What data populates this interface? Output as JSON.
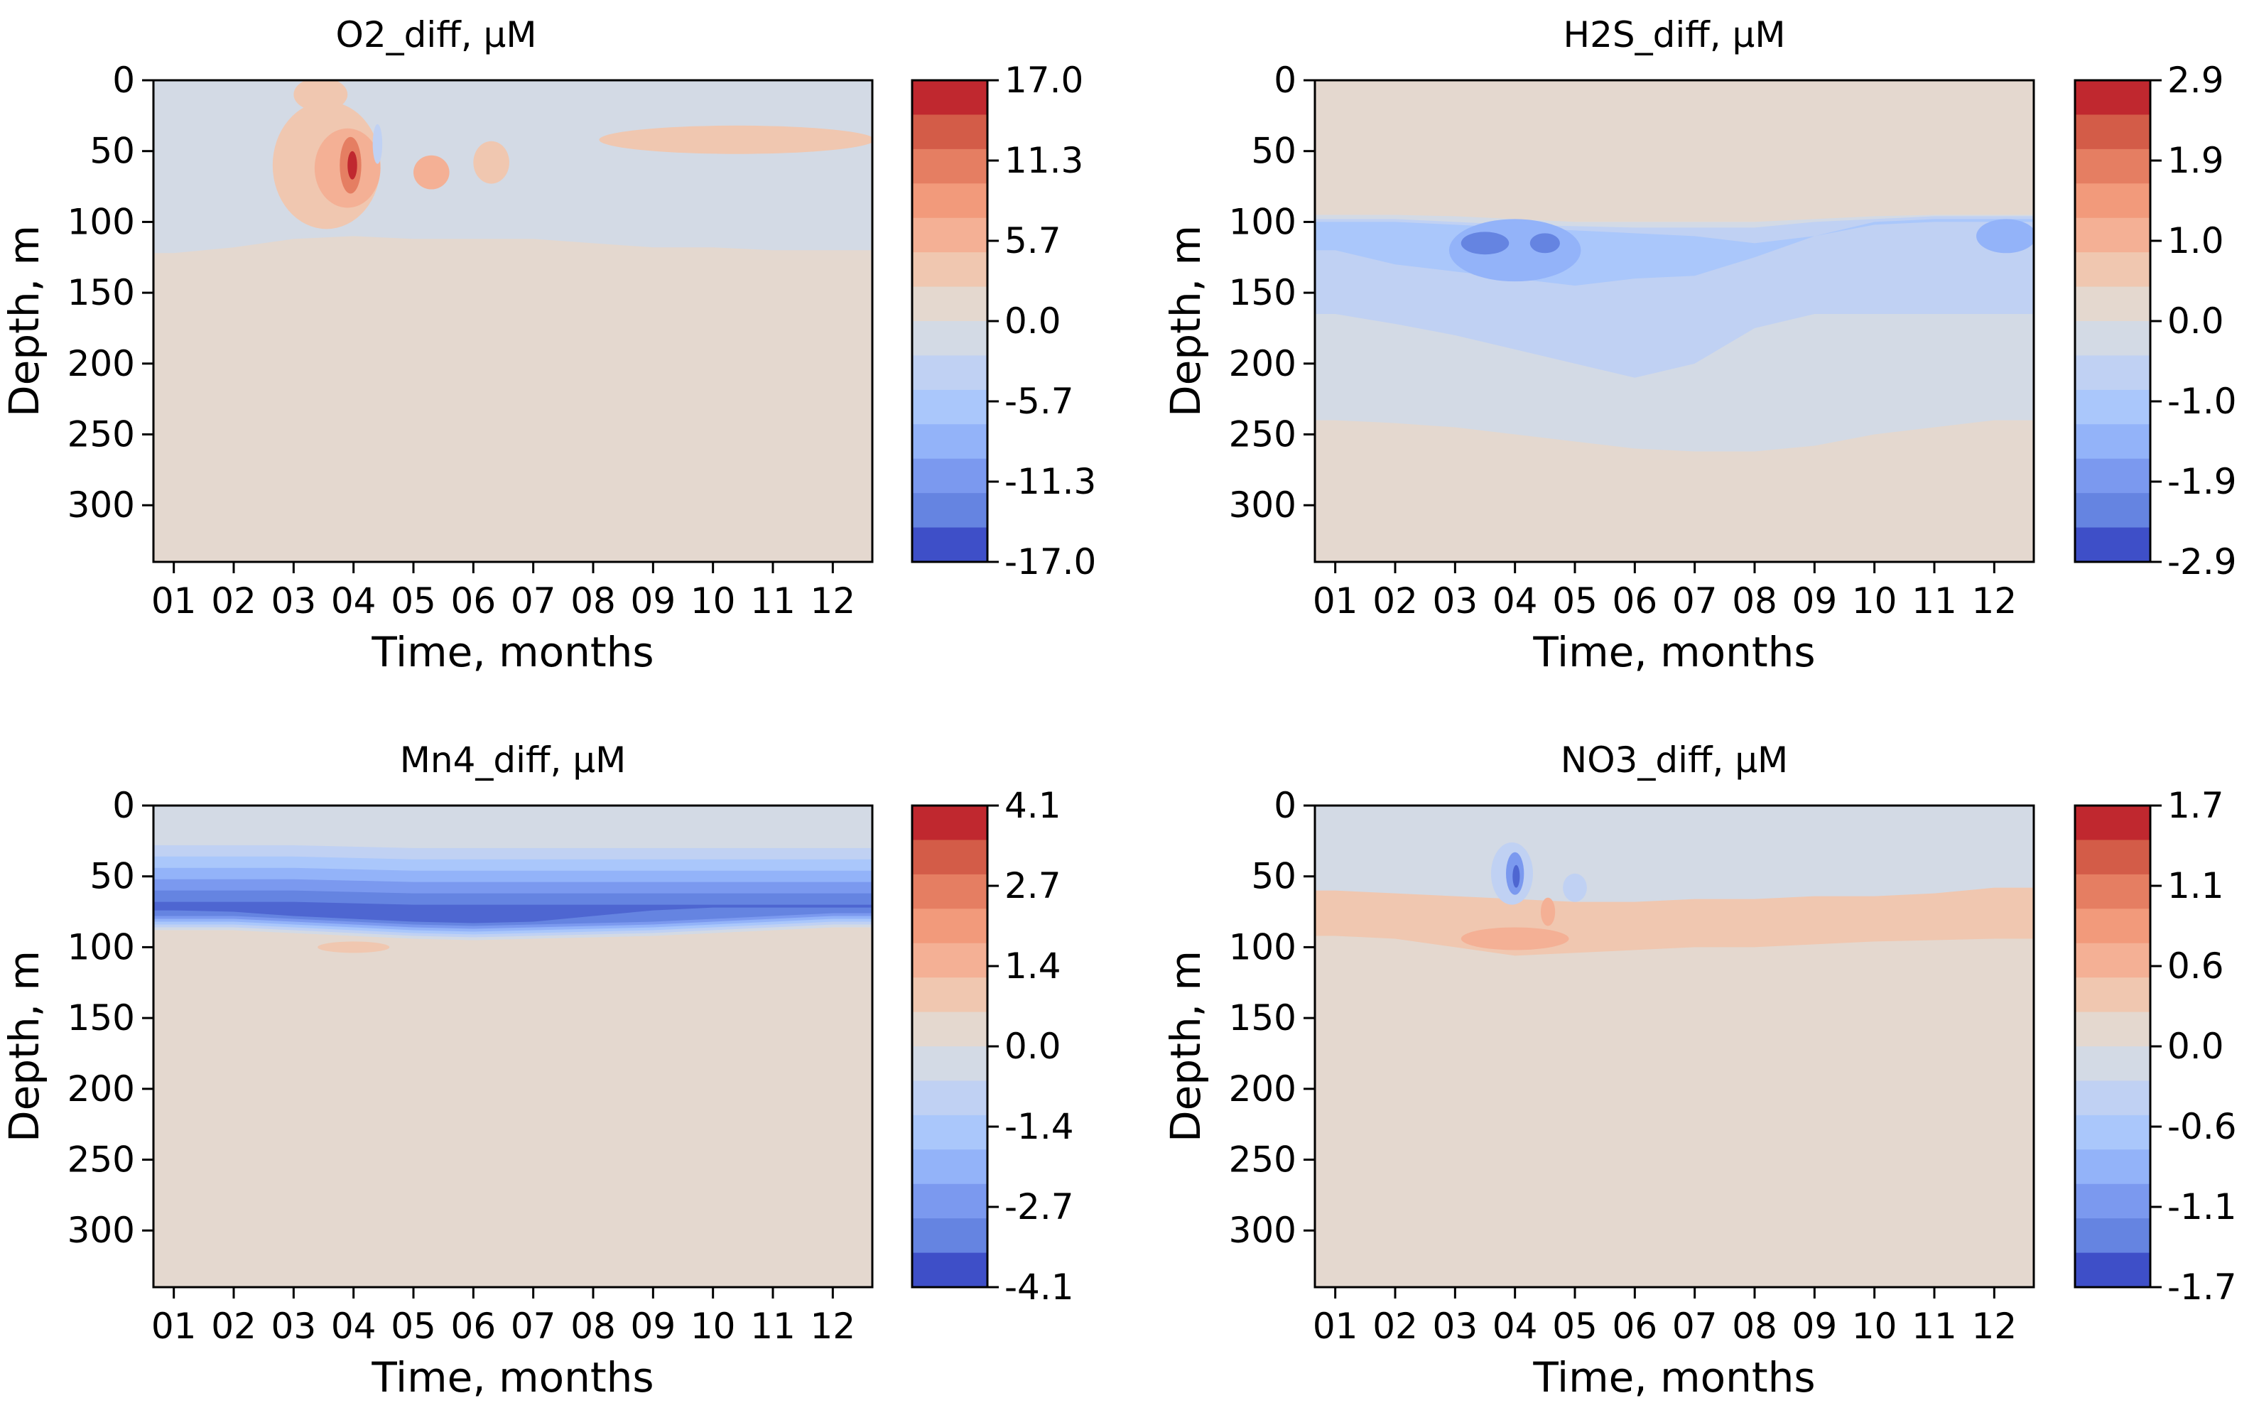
{
  "colors": {
    "background": "#e4d8cf",
    "neutral_negative": "#d3dae5",
    "pos_levels": [
      "#e4d8cf",
      "#f0c7b0",
      "#f4b095",
      "#f29a7b",
      "#e57e62",
      "#d35c48",
      "#c0282f"
    ],
    "neg_levels": [
      "#d3dae5",
      "#c0d1f3",
      "#aac7fb",
      "#93b3f9",
      "#7b99ef",
      "#6584e1",
      "#4e66d1",
      "#3e4fc8"
    ]
  },
  "chart_data": [
    {
      "type": "heatmap",
      "title": "O2_diff, μM",
      "xlabel": "Time, months",
      "ylabel": "Depth, m",
      "x_ticks": [
        "01",
        "02",
        "03",
        "04",
        "05",
        "06",
        "07",
        "08",
        "09",
        "10",
        "11",
        "12"
      ],
      "y_ticks": [
        "0",
        "50",
        "100",
        "150",
        "200",
        "250",
        "300"
      ],
      "ylim": [
        340,
        0
      ],
      "colorbar": {
        "ticks": [
          "17.0",
          "11.3",
          "5.7",
          "0.0",
          "-5.7",
          "-11.3",
          "-17.0"
        ],
        "range": [
          -17.0,
          17.0
        ]
      },
      "features": [
        {
          "name": "surface-layer-negative",
          "kind": "layer",
          "level": -1,
          "depth_bottom": [
            122,
            118,
            112,
            110,
            112,
            112,
            112,
            115,
            118,
            118,
            120,
            120
          ]
        },
        {
          "name": "surface-positive-patch",
          "kind": "blob",
          "level": 1,
          "month": 3.45,
          "depth": 10,
          "dm": 0.45,
          "dd": 12
        },
        {
          "name": "positive-anomaly-weak",
          "kind": "blob",
          "level": 1,
          "month": 3.55,
          "depth": 60,
          "dm": 0.9,
          "dd": 45
        },
        {
          "name": "positive-anomaly-moderate",
          "kind": "blob",
          "level": 2,
          "month": 3.9,
          "depth": 62,
          "dm": 0.55,
          "dd": 28
        },
        {
          "name": "positive-anomaly-strong",
          "kind": "blob",
          "level": 4,
          "month": 3.95,
          "depth": 60,
          "dm": 0.18,
          "dd": 20
        },
        {
          "name": "positive-anomaly-peak",
          "kind": "blob",
          "level": 7,
          "month": 3.98,
          "depth": 60,
          "dm": 0.08,
          "dd": 10
        },
        {
          "name": "negative-anomaly",
          "kind": "blob",
          "level": -2,
          "month": 4.4,
          "depth": 45,
          "dm": 0.08,
          "dd": 14
        },
        {
          "name": "positive-cell-may",
          "kind": "blob",
          "level": 2,
          "month": 5.3,
          "depth": 65,
          "dm": 0.3,
          "dd": 12
        },
        {
          "name": "positive-cell-june",
          "kind": "blob",
          "level": 1,
          "month": 6.3,
          "depth": 58,
          "dm": 0.3,
          "dd": 15
        },
        {
          "name": "positive-band-late-year",
          "kind": "blob",
          "level": 1,
          "month": 10.4,
          "depth": 42,
          "dm": 2.3,
          "dd": 10
        }
      ]
    },
    {
      "type": "heatmap",
      "title": "H2S_diff, μM",
      "xlabel": "Time, months",
      "ylabel": "Depth, m",
      "x_ticks": [
        "01",
        "02",
        "03",
        "04",
        "05",
        "06",
        "07",
        "08",
        "09",
        "10",
        "11",
        "12"
      ],
      "y_ticks": [
        "0",
        "50",
        "100",
        "150",
        "200",
        "250",
        "300"
      ],
      "ylim": [
        340,
        0
      ],
      "colorbar": {
        "ticks": [
          "2.9",
          "1.9",
          "1.0",
          "0.0",
          "-1.0",
          "-1.9",
          "-2.9"
        ],
        "range": [
          -2.9,
          2.9
        ]
      },
      "features": [
        {
          "name": "negative-band-weak",
          "kind": "band",
          "level": -1,
          "depth_top": [
            95,
            95,
            96,
            98,
            100,
            100,
            100,
            100,
            98,
            96,
            95,
            95
          ],
          "depth_bottom": [
            240,
            242,
            245,
            250,
            255,
            260,
            262,
            262,
            258,
            250,
            245,
            240
          ]
        },
        {
          "name": "negative-band-moderate",
          "kind": "band",
          "level": -2,
          "depth_top": [
            98,
            98,
            100,
            102,
            103,
            104,
            104,
            104,
            100,
            98,
            96,
            96
          ],
          "depth_bottom": [
            165,
            172,
            180,
            190,
            200,
            210,
            200,
            175,
            165,
            165,
            165,
            165
          ]
        },
        {
          "name": "negative-band-strong",
          "kind": "band",
          "level": -3,
          "depth_top": [
            100,
            100,
            102,
            104,
            106,
            108,
            110,
            115,
            110,
            100,
            98,
            98
          ],
          "depth_bottom": [
            120,
            130,
            135,
            140,
            145,
            140,
            138,
            125,
            110,
            102,
            100,
            100
          ]
        },
        {
          "name": "negative-core-march-april",
          "kind": "blob",
          "level": -4,
          "month": 4.0,
          "depth": 120,
          "dm": 1.1,
          "dd": 22
        },
        {
          "name": "negative-core-peak-a",
          "kind": "blob",
          "level": -6,
          "month": 3.5,
          "depth": 115,
          "dm": 0.4,
          "dd": 8
        },
        {
          "name": "negative-core-peak-b",
          "kind": "blob",
          "level": -6,
          "month": 4.5,
          "depth": 115,
          "dm": 0.25,
          "dd": 7
        },
        {
          "name": "negative-core-december",
          "kind": "blob",
          "level": -4,
          "month": 12.2,
          "depth": 110,
          "dm": 0.5,
          "dd": 12
        }
      ]
    },
    {
      "type": "heatmap",
      "title": "Mn4_diff, μM",
      "xlabel": "Time, months",
      "ylabel": "Depth, m",
      "x_ticks": [
        "01",
        "02",
        "03",
        "04",
        "05",
        "06",
        "07",
        "08",
        "09",
        "10",
        "11",
        "12"
      ],
      "y_ticks": [
        "0",
        "50",
        "100",
        "150",
        "200",
        "250",
        "300"
      ],
      "ylim": [
        340,
        0
      ],
      "colorbar": {
        "ticks": [
          "4.1",
          "2.7",
          "1.4",
          "0.0",
          "-1.4",
          "-2.7",
          "-4.1"
        ],
        "range": [
          -4.1,
          4.1
        ]
      },
      "features": [
        {
          "name": "neutral-surface-layer",
          "kind": "layer",
          "level": -1,
          "depth_bottom": [
            88,
            88,
            90,
            92,
            94,
            95,
            94,
            93,
            92,
            90,
            88,
            86
          ]
        },
        {
          "name": "negative-band-1",
          "kind": "band",
          "level": -1,
          "depth_top": [
            20,
            20,
            20,
            21,
            22,
            22,
            22,
            22,
            22,
            22,
            22,
            22
          ],
          "depth_bottom": [
            88,
            88,
            90,
            92,
            94,
            95,
            94,
            93,
            92,
            90,
            88,
            86
          ]
        },
        {
          "name": "negative-band-2",
          "kind": "band",
          "level": -2,
          "depth_top": [
            28,
            28,
            28,
            29,
            30,
            30,
            30,
            30,
            30,
            30,
            30,
            30
          ],
          "depth_bottom": [
            86,
            86,
            88,
            90,
            92,
            93,
            92,
            91,
            90,
            88,
            86,
            84
          ]
        },
        {
          "name": "negative-band-3",
          "kind": "band",
          "level": -3,
          "depth_top": [
            36,
            36,
            36,
            37,
            38,
            38,
            38,
            38,
            38,
            38,
            38,
            38
          ],
          "depth_bottom": [
            84,
            84,
            86,
            88,
            90,
            91,
            90,
            89,
            88,
            86,
            84,
            82
          ]
        },
        {
          "name": "negative-band-4",
          "kind": "band",
          "level": -4,
          "depth_top": [
            44,
            44,
            44,
            45,
            46,
            46,
            46,
            46,
            46,
            46,
            46,
            46
          ],
          "depth_bottom": [
            82,
            82,
            84,
            86,
            88,
            89,
            88,
            87,
            86,
            84,
            82,
            80
          ]
        },
        {
          "name": "negative-band-5",
          "kind": "band",
          "level": -5,
          "depth_top": [
            52,
            52,
            52,
            53,
            54,
            54,
            54,
            54,
            54,
            54,
            54,
            54
          ],
          "depth_bottom": [
            80,
            80,
            82,
            84,
            86,
            87,
            86,
            85,
            84,
            82,
            80,
            78
          ]
        },
        {
          "name": "negative-band-6",
          "kind": "band",
          "level": -6,
          "depth_top": [
            60,
            60,
            60,
            61,
            62,
            62,
            62,
            62,
            62,
            62,
            62,
            62
          ],
          "depth_bottom": [
            78,
            78,
            80,
            82,
            84,
            85,
            84,
            83,
            82,
            80,
            78,
            76
          ]
        },
        {
          "name": "negative-core",
          "kind": "band",
          "level": -7,
          "depth_top": [
            68,
            68,
            68,
            69,
            70,
            70,
            70,
            70,
            70,
            70,
            70,
            70
          ],
          "depth_bottom": [
            74,
            75,
            78,
            80,
            82,
            83,
            82,
            78,
            74,
            72,
            72,
            72
          ]
        },
        {
          "name": "positive-patch-april",
          "kind": "blob",
          "level": 1,
          "month": 4.0,
          "depth": 100,
          "dm": 0.6,
          "dd": 4
        }
      ]
    },
    {
      "type": "heatmap",
      "title": "NO3_diff, μM",
      "xlabel": "Time, months",
      "ylabel": "Depth, m",
      "x_ticks": [
        "01",
        "02",
        "03",
        "04",
        "05",
        "06",
        "07",
        "08",
        "09",
        "10",
        "11",
        "12"
      ],
      "y_ticks": [
        "0",
        "50",
        "100",
        "150",
        "200",
        "250",
        "300"
      ],
      "ylim": [
        340,
        0
      ],
      "colorbar": {
        "ticks": [
          "1.7",
          "1.1",
          "0.6",
          "0.0",
          "-0.6",
          "-1.1",
          "-1.7"
        ],
        "range": [
          -1.7,
          1.7
        ]
      },
      "features": [
        {
          "name": "neutral-negative-upper",
          "kind": "layer",
          "level": -1,
          "depth_bottom": [
            62,
            64,
            66,
            68,
            70,
            70,
            68,
            68,
            66,
            66,
            64,
            60
          ]
        },
        {
          "name": "positive-band",
          "kind": "band",
          "level": 1,
          "depth_top": [
            60,
            62,
            64,
            66,
            68,
            68,
            66,
            66,
            64,
            64,
            62,
            58
          ],
          "depth_bottom": [
            92,
            94,
            100,
            106,
            104,
            102,
            100,
            100,
            98,
            96,
            95,
            94
          ]
        },
        {
          "name": "positive-band-stronger",
          "kind": "blob",
          "level": 2,
          "month": 4.0,
          "depth": 94,
          "dm": 0.9,
          "dd": 8
        },
        {
          "name": "positive-patch-may",
          "kind": "blob",
          "level": 2,
          "month": 4.55,
          "depth": 75,
          "dm": 0.12,
          "dd": 10
        },
        {
          "name": "negative-anomaly-weak",
          "kind": "blob",
          "level": -2,
          "month": 3.95,
          "depth": 48,
          "dm": 0.35,
          "dd": 22
        },
        {
          "name": "negative-anomaly-strong",
          "kind": "blob",
          "level": -5,
          "month": 4.0,
          "depth": 48,
          "dm": 0.15,
          "dd": 15
        },
        {
          "name": "negative-anomaly-core",
          "kind": "blob",
          "level": -7,
          "month": 4.02,
          "depth": 50,
          "dm": 0.06,
          "dd": 8
        },
        {
          "name": "negative-patch-may",
          "kind": "blob",
          "level": -2,
          "month": 5.0,
          "depth": 58,
          "dm": 0.2,
          "dd": 10
        }
      ]
    }
  ]
}
